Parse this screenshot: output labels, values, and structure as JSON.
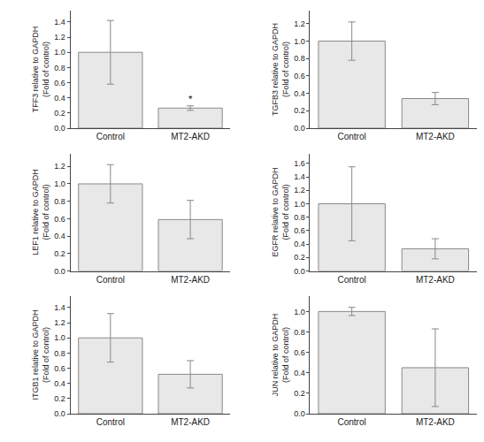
{
  "chart_data": [
    {
      "type": "bar",
      "ylabel": "TFF3 relative to GAPDH\n(Fold of control)",
      "categories": [
        "Control",
        "MT2-AKD"
      ],
      "values": [
        1.0,
        0.265
      ],
      "err_low": [
        0.42,
        0.03
      ],
      "err_high": [
        0.42,
        0.03
      ],
      "ylim": [
        0,
        1.55
      ],
      "yticks": [
        {
          "value": 0.0,
          "label": "0.0"
        },
        0.2,
        0.4,
        0.6,
        0.8,
        {
          "value": 1.0,
          "label": "1.0"
        },
        1.2,
        1.4
      ],
      "color": "#e8e8e8",
      "grid": false,
      "annotations": [
        {
          "text": "*",
          "category": "MT2-AKD"
        }
      ]
    },
    {
      "type": "bar",
      "ylabel": "TGFB3 relative to GAPDH\n(Fold of control)",
      "categories": [
        "Control",
        "MT2-AKD"
      ],
      "values": [
        1.0,
        0.34
      ],
      "err_low": [
        0.22,
        0.07
      ],
      "err_high": [
        0.22,
        0.07
      ],
      "ylim": [
        0,
        1.35
      ],
      "yticks": [
        {
          "value": 0.0,
          "label": "0.0"
        },
        0.2,
        0.4,
        0.6,
        0.8,
        {
          "value": 1.0,
          "label": "1.0"
        },
        1.2
      ],
      "color": "#e8e8e8",
      "grid": false
    },
    {
      "type": "bar",
      "ylabel": "LEF1 relative to GAPDH\n(Fold of control)",
      "categories": [
        "Control",
        "MT2-AKD"
      ],
      "values": [
        1.0,
        0.59
      ],
      "err_low": [
        0.22,
        0.22
      ],
      "err_high": [
        0.22,
        0.22
      ],
      "ylim": [
        0,
        1.35
      ],
      "yticks": [
        {
          "value": 0.0,
          "label": "0.0"
        },
        0.2,
        0.4,
        0.6,
        0.8,
        {
          "value": 1.0,
          "label": "1.0"
        },
        1.2
      ],
      "color": "#e8e8e8",
      "grid": false
    },
    {
      "type": "bar",
      "ylabel": "EGFR relative to GAPDH\n(Fold of control)",
      "categories": [
        "Control",
        "MT2-AKD"
      ],
      "values": [
        1.0,
        0.33
      ],
      "err_low": [
        0.55,
        0.15
      ],
      "err_high": [
        0.55,
        0.15
      ],
      "ylim": [
        0,
        1.75
      ],
      "yticks": [
        {
          "value": 0.0,
          "label": "0.0"
        },
        0.2,
        0.4,
        0.6,
        0.8,
        {
          "value": 1.0,
          "label": "1.0"
        },
        1.2,
        1.4,
        1.6
      ],
      "color": "#e8e8e8",
      "grid": false
    },
    {
      "type": "bar",
      "ylabel": "ITGB1 relative to GAPDH\n(Fold of control)",
      "categories": [
        "Control",
        "MT2-AKD"
      ],
      "values": [
        1.0,
        0.52
      ],
      "err_low": [
        0.32,
        0.18
      ],
      "err_high": [
        0.32,
        0.18
      ],
      "ylim": [
        0,
        1.55
      ],
      "yticks": [
        {
          "value": 0.0,
          "label": "0.0"
        },
        0.2,
        0.4,
        0.6,
        0.8,
        {
          "value": 1.0,
          "label": "1.0"
        },
        1.2,
        1.4
      ],
      "color": "#e8e8e8",
      "grid": false
    },
    {
      "type": "bar",
      "ylabel": "JUN relative to GAPDH\n(Fold of control)",
      "categories": [
        "Control",
        "MT2-AKD"
      ],
      "values": [
        1.0,
        0.45
      ],
      "err_low": [
        0.04,
        0.38
      ],
      "err_high": [
        0.04,
        0.38
      ],
      "ylim": [
        0,
        1.15
      ],
      "yticks": [
        {
          "value": 0.0,
          "label": "0.0"
        },
        0.2,
        0.4,
        0.6,
        0.8,
        {
          "value": 1.0,
          "label": "1.0"
        }
      ],
      "color": "#e8e8e8",
      "grid": false
    }
  ]
}
